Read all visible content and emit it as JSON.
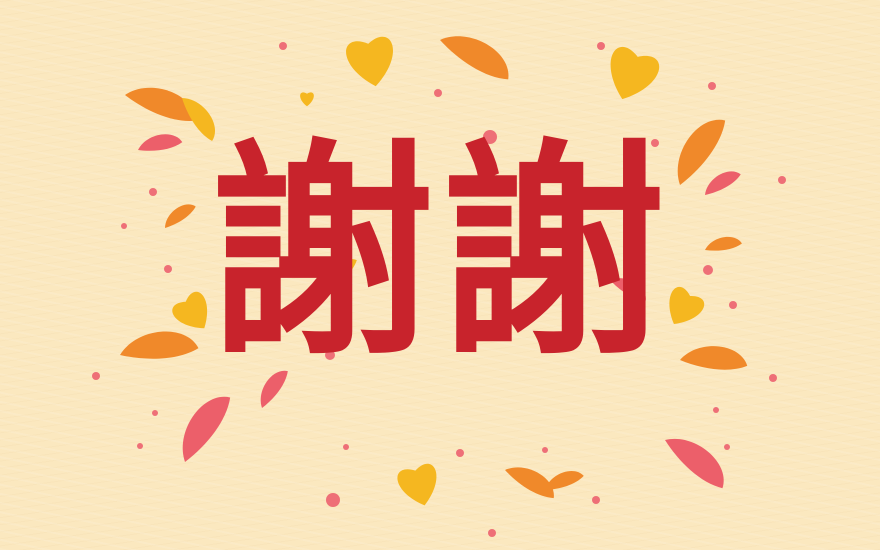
{
  "greeting": {
    "text": "謝謝"
  },
  "colors": {
    "background": "#fbe8bf",
    "text": "#c8232c",
    "orange": "#f0892a",
    "yellow": "#f5b720",
    "pink": "#ec5f6a",
    "dot": "#ee6f77"
  },
  "decoration": {
    "petal_shapes": [
      "teardrop",
      "heart"
    ]
  }
}
